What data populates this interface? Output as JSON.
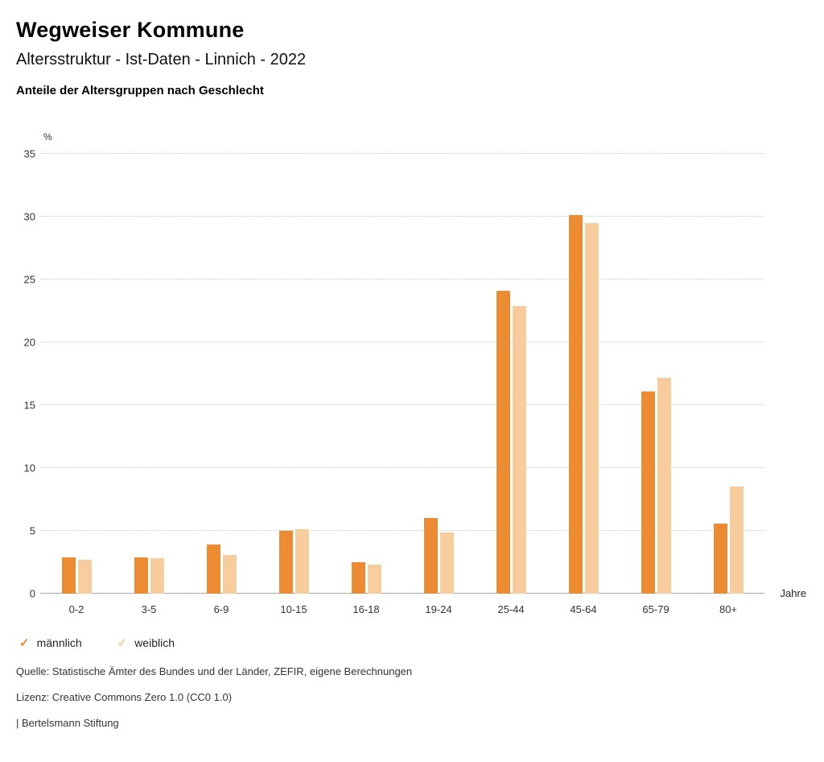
{
  "header": {
    "title": "Wegweiser Kommune",
    "subtitle": "Altersstruktur - Ist-Daten - Linnich - 2022",
    "chart_heading": "Anteile der Altersgruppen nach Geschlecht"
  },
  "chart_data": {
    "type": "bar",
    "title": "Anteile der Altersgruppen nach Geschlecht",
    "categories": [
      "0-2",
      "3-5",
      "6-9",
      "10-15",
      "16-18",
      "19-24",
      "25-44",
      "45-64",
      "65-79",
      "80+"
    ],
    "series": [
      {
        "id": "maennlich",
        "name": "männlich",
        "color": "#ED8B33",
        "values": [
          2.9,
          2.9,
          3.9,
          5.0,
          2.5,
          6.0,
          24.1,
          30.1,
          16.1,
          5.6
        ]
      },
      {
        "id": "weiblich",
        "name": "weiblich",
        "color": "#F7CD9E",
        "values": [
          2.7,
          2.8,
          3.1,
          5.1,
          2.3,
          4.9,
          22.9,
          29.5,
          17.2,
          8.5
        ]
      }
    ],
    "ylabel": "%",
    "xlabel": "Jahre",
    "ylim": [
      0,
      35
    ],
    "yticks": [
      0,
      5,
      10,
      15,
      20,
      25,
      30,
      35
    ],
    "grid": "dotted horizontal",
    "legend_position": "bottom"
  },
  "legend": {
    "items": [
      {
        "id": "maennlich",
        "label": "männlich",
        "color": "#ED8B33",
        "icon": "check"
      },
      {
        "id": "weiblich",
        "label": "weiblich",
        "color": "#F7CD9E",
        "icon": "check"
      }
    ]
  },
  "footer": {
    "source": "Quelle: Statistische Ämter des Bundes und der Länder, ZEFIR, eigene Berechnungen",
    "license": "Lizenz: Creative Commons Zero 1.0 (CC0 1.0)",
    "attribution": "| Bertelsmann Stiftung"
  }
}
